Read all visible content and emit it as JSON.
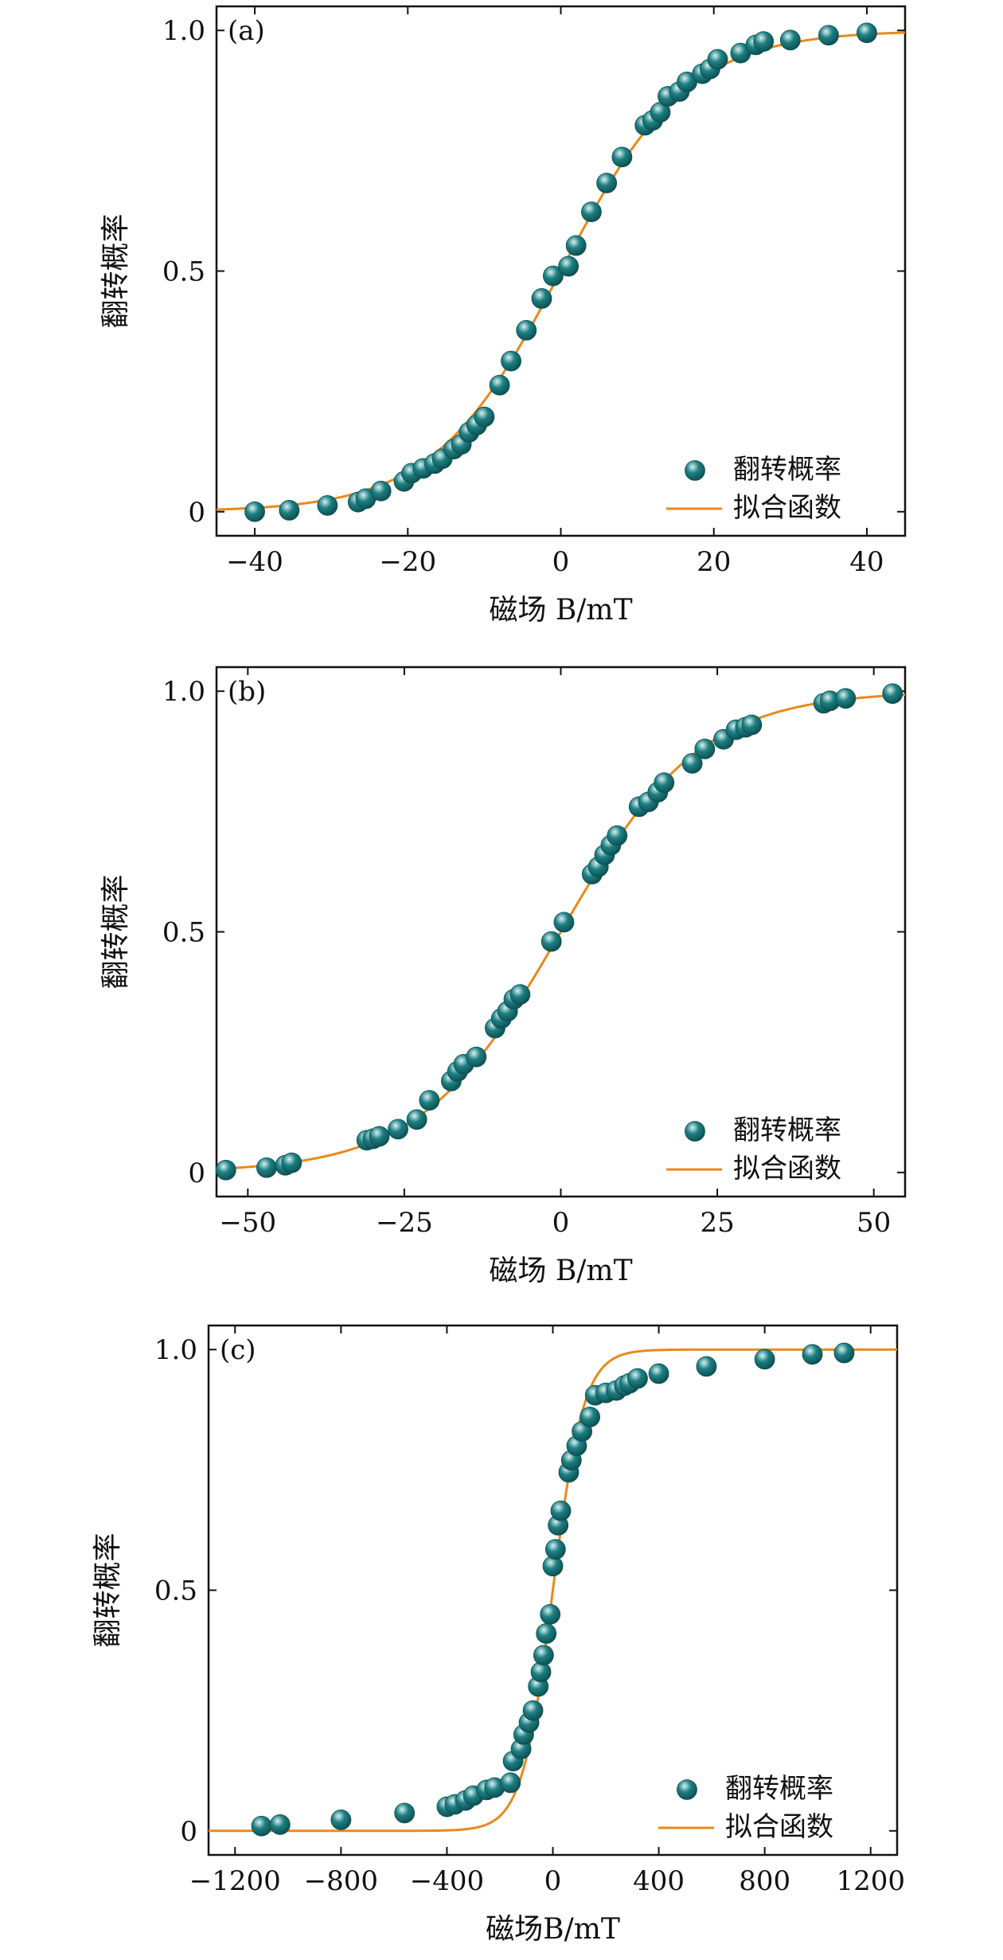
{
  "colors": {
    "marker": "#1d7f82",
    "marker_dark": "#0d4f52",
    "marker_light": "#d9f1f1",
    "fit": "#e8891c",
    "axis": "#111111"
  },
  "legend": {
    "marker_label": "翻转概率",
    "line_label": "拟合函数",
    "placement": "bottom-right"
  },
  "chart_data": [
    {
      "id": "a",
      "type": "scatter",
      "panel_label": "(a)",
      "xlabel": "磁场 B/mT",
      "ylabel": "翻转概率",
      "xlim": [
        -45,
        45
      ],
      "ylim": [
        -0.05,
        1.05
      ],
      "xticks": [
        -40,
        -20,
        0,
        20,
        40
      ],
      "xtick_labels": [
        "−40",
        "−20",
        "0",
        "20",
        "40"
      ],
      "yticks": [
        0,
        0.5,
        1.0
      ],
      "ytick_labels": [
        "0",
        "0.5",
        "1.0"
      ],
      "grid": false,
      "fit": {
        "center": 0,
        "width": 8.3
      },
      "series": [
        {
          "name": "翻转概率",
          "points": [
            [
              -40,
              0.0
            ],
            [
              -35.5,
              0.003
            ],
            [
              -30.5,
              0.013
            ],
            [
              -26.5,
              0.02
            ],
            [
              -25.5,
              0.027
            ],
            [
              -23.5,
              0.043
            ],
            [
              -20.5,
              0.063
            ],
            [
              -19.5,
              0.08
            ],
            [
              -18,
              0.09
            ],
            [
              -16.5,
              0.1
            ],
            [
              -15.5,
              0.11
            ],
            [
              -14,
              0.13
            ],
            [
              -13,
              0.14
            ],
            [
              -12,
              0.165
            ],
            [
              -11,
              0.18
            ],
            [
              -10,
              0.197
            ],
            [
              -8,
              0.263
            ],
            [
              -6.5,
              0.313
            ],
            [
              -4.5,
              0.377
            ],
            [
              -2.5,
              0.443
            ],
            [
              -1,
              0.49
            ],
            [
              1,
              0.51
            ],
            [
              2,
              0.553
            ],
            [
              4,
              0.623
            ],
            [
              6,
              0.683
            ],
            [
              8,
              0.737
            ],
            [
              11,
              0.803
            ],
            [
              12,
              0.813
            ],
            [
              13,
              0.83
            ],
            [
              14,
              0.863
            ],
            [
              15.5,
              0.873
            ],
            [
              16.5,
              0.893
            ],
            [
              18.5,
              0.91
            ],
            [
              19.5,
              0.92
            ],
            [
              20.5,
              0.94
            ],
            [
              23.5,
              0.953
            ],
            [
              25.5,
              0.97
            ],
            [
              26.5,
              0.977
            ],
            [
              30,
              0.98
            ],
            [
              35,
              0.99
            ],
            [
              40,
              0.995
            ]
          ]
        }
      ]
    },
    {
      "id": "b",
      "type": "scatter",
      "panel_label": "(b)",
      "xlabel": "磁场  B/mT",
      "ylabel": "翻转概率",
      "xlim": [
        -55,
        55
      ],
      "ylim": [
        -0.05,
        1.05
      ],
      "xticks": [
        -50,
        -25,
        0,
        25,
        50
      ],
      "xtick_labels": [
        "−50",
        "−25",
        "0",
        "25",
        "50"
      ],
      "yticks": [
        0,
        0.5,
        1.0
      ],
      "ytick_labels": [
        "0",
        "0.5",
        "1.0"
      ],
      "grid": false,
      "fit": {
        "center": 0,
        "width": 11.2
      },
      "series": [
        {
          "name": "翻转概率",
          "points": [
            [
              -53.5,
              0.005
            ],
            [
              -47,
              0.01
            ],
            [
              -44,
              0.015
            ],
            [
              -43,
              0.02
            ],
            [
              -31,
              0.067
            ],
            [
              -30,
              0.07
            ],
            [
              -29,
              0.075
            ],
            [
              -26,
              0.09
            ],
            [
              -23,
              0.11
            ],
            [
              -21,
              0.15
            ],
            [
              -17.5,
              0.19
            ],
            [
              -16.5,
              0.21
            ],
            [
              -15.5,
              0.225
            ],
            [
              -13.5,
              0.24
            ],
            [
              -10.5,
              0.3
            ],
            [
              -9.5,
              0.32
            ],
            [
              -8.5,
              0.335
            ],
            [
              -7.5,
              0.36
            ],
            [
              -6.5,
              0.37
            ],
            [
              -1.5,
              0.48
            ],
            [
              0.5,
              0.52
            ],
            [
              5,
              0.62
            ],
            [
              6,
              0.635
            ],
            [
              7,
              0.66
            ],
            [
              8,
              0.68
            ],
            [
              9,
              0.7
            ],
            [
              12.5,
              0.76
            ],
            [
              14,
              0.77
            ],
            [
              15.5,
              0.79
            ],
            [
              16.5,
              0.81
            ],
            [
              21,
              0.85
            ],
            [
              23,
              0.88
            ],
            [
              26,
              0.9
            ],
            [
              28,
              0.92
            ],
            [
              29.5,
              0.925
            ],
            [
              30.5,
              0.93
            ],
            [
              42,
              0.975
            ],
            [
              43,
              0.98
            ],
            [
              45.5,
              0.985
            ],
            [
              53,
              0.995
            ]
          ]
        }
      ]
    },
    {
      "id": "c",
      "type": "scatter",
      "panel_label": "(c)",
      "xlabel": "磁场B/mT",
      "ylabel": "翻转概率",
      "xlim": [
        -1300,
        1300
      ],
      "ylim": [
        -0.05,
        1.05
      ],
      "xticks": [
        -1200,
        -800,
        -400,
        0,
        400,
        800,
        1200
      ],
      "xtick_labels": [
        "−1200",
        "−800",
        "−400",
        "0",
        "400",
        "800",
        "1200"
      ],
      "yticks": [
        0,
        0.5,
        1.0
      ],
      "ytick_labels": [
        "0",
        "0.5",
        "1.0"
      ],
      "grid": false,
      "fit": {
        "center": 0,
        "width": 58
      },
      "series": [
        {
          "name": "翻转概率",
          "points": [
            [
              -1100,
              0.01
            ],
            [
              -1030,
              0.013
            ],
            [
              -800,
              0.023
            ],
            [
              -560,
              0.037
            ],
            [
              -400,
              0.05
            ],
            [
              -370,
              0.055
            ],
            [
              -330,
              0.063
            ],
            [
              -300,
              0.073
            ],
            [
              -250,
              0.085
            ],
            [
              -220,
              0.09
            ],
            [
              -160,
              0.1
            ],
            [
              -150,
              0.145
            ],
            [
              -120,
              0.17
            ],
            [
              -110,
              0.2
            ],
            [
              -90,
              0.225
            ],
            [
              -75,
              0.25
            ],
            [
              -55,
              0.3
            ],
            [
              -45,
              0.33
            ],
            [
              -35,
              0.365
            ],
            [
              -25,
              0.41
            ],
            [
              -10,
              0.45
            ],
            [
              0,
              0.55
            ],
            [
              10,
              0.585
            ],
            [
              20,
              0.635
            ],
            [
              30,
              0.665
            ],
            [
              60,
              0.745
            ],
            [
              70,
              0.77
            ],
            [
              90,
              0.8
            ],
            [
              110,
              0.83
            ],
            [
              140,
              0.86
            ],
            [
              160,
              0.905
            ],
            [
              200,
              0.91
            ],
            [
              240,
              0.915
            ],
            [
              270,
              0.925
            ],
            [
              290,
              0.93
            ],
            [
              320,
              0.94
            ],
            [
              400,
              0.95
            ],
            [
              580,
              0.965
            ],
            [
              800,
              0.98
            ],
            [
              980,
              0.99
            ],
            [
              1100,
              0.993
            ]
          ]
        }
      ]
    }
  ]
}
